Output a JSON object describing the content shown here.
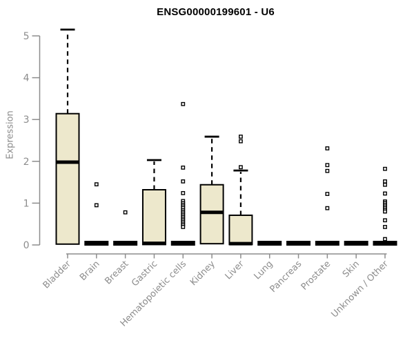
{
  "chart_data": {
    "type": "boxplot",
    "title": "ENSG00000199601 - U6",
    "ylabel": "Expression",
    "xlabel": "",
    "ylim": [
      0,
      5
    ],
    "y_ticks": [
      0,
      1,
      2,
      3,
      4,
      5
    ],
    "grid": false,
    "legend": null,
    "colors": {
      "box_fill": "#EDE8CC",
      "box_stroke": "#000000",
      "median": "#000000",
      "axis": "#8C8C8C",
      "tick_label": "#8C8C8C",
      "title": "#000000",
      "background": "#FFFFFF"
    },
    "series": [
      {
        "label": "Bladder",
        "box": {
          "q1": 0.02,
          "median": 1.98,
          "q3": 3.14,
          "whisker_low": null,
          "whisker_high": 5.15
        },
        "zero_bar": false,
        "outliers": []
      },
      {
        "label": "Brain",
        "box": null,
        "zero_bar": true,
        "outliers": [
          1.45,
          0.95
        ]
      },
      {
        "label": "Breast",
        "box": null,
        "zero_bar": true,
        "outliers": [
          0.78
        ]
      },
      {
        "label": "Gastric",
        "box": {
          "q1": 0.01,
          "median": 0.04,
          "q3": 1.32,
          "whisker_low": null,
          "whisker_high": 2.03
        },
        "zero_bar": false,
        "outliers": []
      },
      {
        "label": "Hematopoietic cells",
        "box": null,
        "zero_bar": true,
        "outliers": [
          3.37,
          1.85,
          1.52,
          1.24,
          1.05,
          1.0,
          0.96,
          0.92,
          0.88,
          0.83,
          0.79,
          0.75,
          0.71,
          0.67,
          0.63,
          0.59,
          0.55,
          0.51,
          0.47,
          0.43
        ]
      },
      {
        "label": "Kidney",
        "box": {
          "q1": 0.03,
          "median": 0.78,
          "q3": 1.44,
          "whisker_low": null,
          "whisker_high": 2.59
        },
        "zero_bar": false,
        "outliers": []
      },
      {
        "label": "Liver",
        "box": {
          "q1": 0.01,
          "median": 0.03,
          "q3": 0.71,
          "whisker_low": null,
          "whisker_high": 1.78
        },
        "zero_bar": false,
        "outliers": [
          1.86,
          2.48,
          2.59
        ]
      },
      {
        "label": "Lung",
        "box": null,
        "zero_bar": true,
        "outliers": []
      },
      {
        "label": "Pancreas",
        "box": null,
        "zero_bar": true,
        "outliers": []
      },
      {
        "label": "Prostate",
        "box": null,
        "zero_bar": true,
        "outliers": [
          2.31,
          1.91,
          1.77,
          1.22,
          0.88
        ]
      },
      {
        "label": "Skin",
        "box": null,
        "zero_bar": true,
        "outliers": []
      },
      {
        "label": "Unknown / Other",
        "box": null,
        "zero_bar": true,
        "outliers": [
          1.82,
          1.52,
          1.44,
          1.23,
          1.04,
          1.0,
          0.96,
          0.92,
          0.88,
          0.84,
          0.8,
          0.59,
          0.43,
          0.14
        ]
      }
    ]
  }
}
